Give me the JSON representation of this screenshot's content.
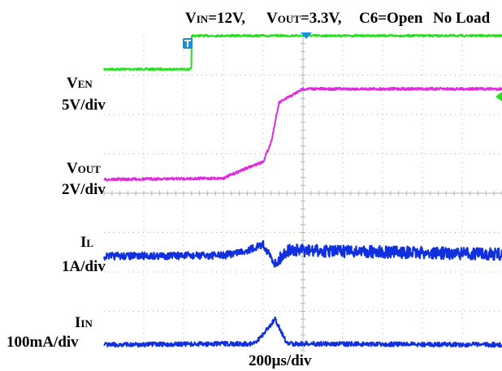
{
  "header": {
    "vin_prefix": "V",
    "vin_sub": "IN",
    "vin_value": "=12V,",
    "vout_prefix": "V",
    "vout_sub": "OUT",
    "vout_value": "=3.3V,",
    "c6": "C6=Open",
    "load": "No Load"
  },
  "xlabel": "200µs/div",
  "channels": {
    "ven": {
      "name_prefix": "V",
      "name_sub": "EN",
      "scale": "5V/div"
    },
    "vout": {
      "name_prefix": "V",
      "name_sub": "OUT",
      "scale": "2V/div"
    },
    "il": {
      "name_prefix": "I",
      "name_sub": "L",
      "scale": "1A/div"
    },
    "iin": {
      "name_prefix": "I",
      "name_sub": "IN",
      "scale": "100mA/div"
    }
  },
  "colors": {
    "ven": "#22e01a",
    "vout": "#e02ae0",
    "il": "#1030e0",
    "iin": "#1030e0",
    "trigger_marker": "#1a8fd8",
    "grid": "#b4b4b4"
  },
  "chart_data": {
    "type": "line",
    "x_unit": "div",
    "xlim": [
      0,
      10
    ],
    "ylim_div": [
      0,
      8
    ],
    "grid": true,
    "x_grid_divisions": 10,
    "y_grid_divisions": 8,
    "series": [
      {
        "name": "VEN",
        "x": [
          0,
          2.2,
          2.2,
          10
        ],
        "y_div": [
          7.15,
          7.15,
          8.0,
          8.0
        ]
      },
      {
        "name": "VOUT",
        "x": [
          0,
          3.0,
          3.5,
          4.0,
          4.2,
          4.4,
          5.0,
          10
        ],
        "y_div": [
          4.35,
          4.38,
          4.6,
          4.8,
          5.3,
          6.3,
          6.65,
          6.65
        ]
      },
      {
        "name": "IL",
        "x": [
          0,
          3.0,
          3.6,
          4.0,
          4.3,
          4.6,
          10
        ],
        "y_div": [
          2.4,
          2.42,
          2.55,
          2.7,
          2.2,
          2.55,
          2.45
        ]
      },
      {
        "name": "IIN",
        "x": [
          0,
          3.8,
          4.1,
          4.3,
          4.6,
          10
        ],
        "y_div": [
          0.15,
          0.18,
          0.55,
          0.8,
          0.18,
          0.15
        ]
      }
    ]
  }
}
